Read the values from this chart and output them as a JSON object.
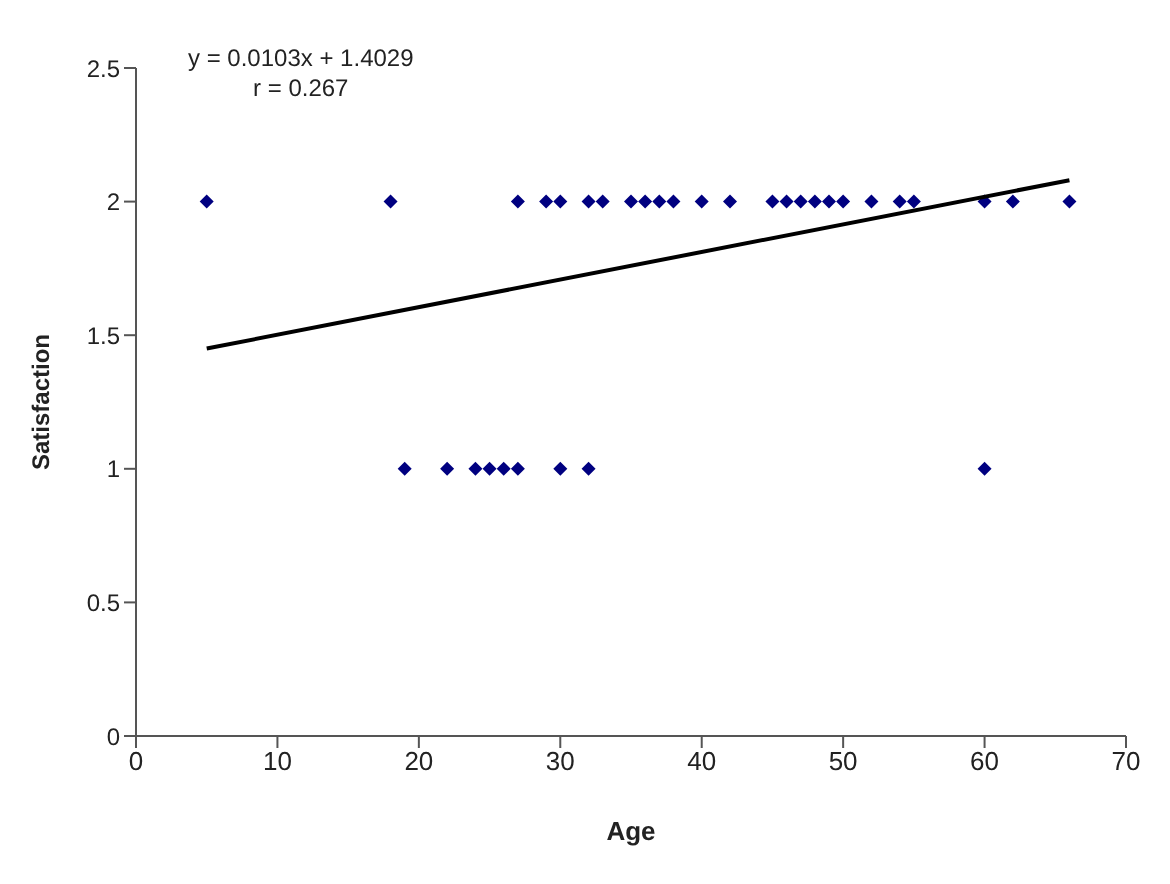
{
  "chart_data": {
    "type": "scatter",
    "xlabel": "Age",
    "ylabel": "Satisfaction",
    "annotations": [
      "y = 0.0103x + 1.4029",
      "r = 0.267"
    ],
    "xlim": [
      0,
      70
    ],
    "xticks": [
      0,
      10,
      20,
      30,
      40,
      50,
      60,
      70
    ],
    "ylim": [
      0,
      2.5
    ],
    "yticks": [
      0,
      0.5,
      1,
      1.5,
      2,
      2.5
    ],
    "grid": false,
    "marker": "diamond",
    "series": [
      {
        "type": "scatter",
        "color": "#000080",
        "x": [
          5,
          18,
          27,
          29,
          30,
          32,
          33,
          35,
          36,
          37,
          38,
          40,
          42,
          45,
          46,
          47,
          48,
          49,
          50,
          52,
          54,
          55,
          60,
          62,
          66,
          19,
          22,
          24,
          25,
          26,
          27,
          30,
          32,
          60
        ],
        "values": [
          2,
          2,
          2,
          2,
          2,
          2,
          2,
          2,
          2,
          2,
          2,
          2,
          2,
          2,
          2,
          2,
          2,
          2,
          2,
          2,
          2,
          2,
          2,
          2,
          2,
          1,
          1,
          1,
          1,
          1,
          1,
          1,
          1,
          1
        ]
      },
      {
        "type": "line",
        "color": "#000000",
        "x": [
          5,
          66
        ],
        "values": [
          1.45,
          2.08
        ],
        "marker": "none",
        "line_style": "solid"
      }
    ]
  }
}
